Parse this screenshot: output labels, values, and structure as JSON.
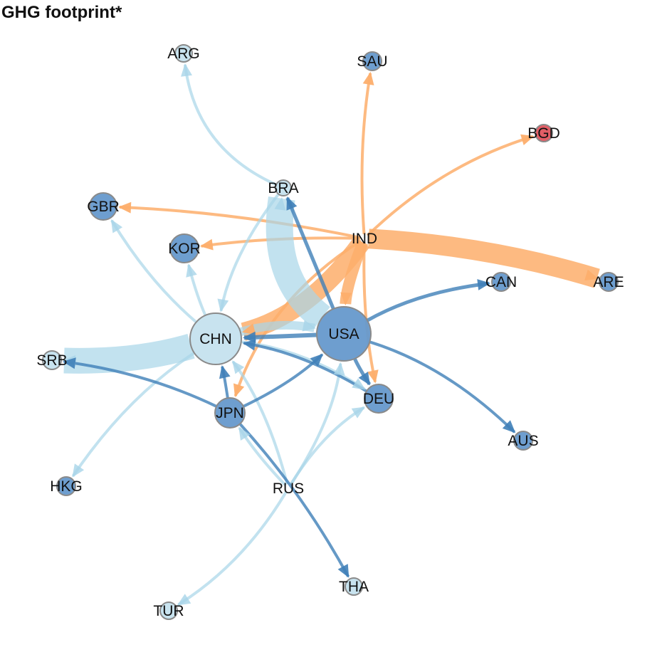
{
  "title": "GHG footprint*",
  "colors": {
    "dark_blue": "#3f7fb8",
    "light_blue": "#a8d5e8",
    "orange": "#fdae6b",
    "red": "#e0555e",
    "node_dark": "#6699cc",
    "node_light": "#c8e3ef",
    "node_border": "#8a8a8a"
  },
  "nodes": [
    {
      "id": "ARG",
      "fill": "node_light"
    },
    {
      "id": "SAU",
      "fill": "node_dark"
    },
    {
      "id": "BGD",
      "fill": "red"
    },
    {
      "id": "BRA",
      "fill": "node_light"
    },
    {
      "id": "GBR",
      "fill": "node_dark"
    },
    {
      "id": "IND",
      "fill": "none"
    },
    {
      "id": "KOR",
      "fill": "node_dark"
    },
    {
      "id": "CAN",
      "fill": "node_dark"
    },
    {
      "id": "ARE",
      "fill": "node_dark"
    },
    {
      "id": "CHN",
      "fill": "node_light"
    },
    {
      "id": "USA",
      "fill": "node_dark"
    },
    {
      "id": "SRB",
      "fill": "node_light"
    },
    {
      "id": "DEU",
      "fill": "node_dark"
    },
    {
      "id": "JPN",
      "fill": "node_dark"
    },
    {
      "id": "AUS",
      "fill": "node_dark"
    },
    {
      "id": "HKG",
      "fill": "node_dark"
    },
    {
      "id": "RUS",
      "fill": "none"
    },
    {
      "id": "THA",
      "fill": "node_light"
    },
    {
      "id": "TUR",
      "fill": "node_light"
    }
  ],
  "edges": [
    {
      "from": "IND",
      "to": "ARE",
      "color": "orange"
    },
    {
      "from": "IND",
      "to": "CHN",
      "color": "orange"
    },
    {
      "from": "IND",
      "to": "USA",
      "color": "orange"
    },
    {
      "from": "IND",
      "to": "SAU",
      "color": "orange"
    },
    {
      "from": "IND",
      "to": "BGD",
      "color": "orange"
    },
    {
      "from": "IND",
      "to": "GBR",
      "color": "orange"
    },
    {
      "from": "IND",
      "to": "KOR",
      "color": "orange"
    },
    {
      "from": "IND",
      "to": "DEU",
      "color": "orange"
    },
    {
      "from": "IND",
      "to": "JPN",
      "color": "orange"
    },
    {
      "from": "CHN",
      "to": "SRB",
      "color": "light_blue"
    },
    {
      "from": "CHN",
      "to": "USA",
      "color": "light_blue"
    },
    {
      "from": "USA",
      "to": "BRA",
      "color": "light_blue"
    },
    {
      "from": "BRA",
      "to": "ARG",
      "color": "light_blue"
    },
    {
      "from": "BRA",
      "to": "CHN",
      "color": "light_blue"
    },
    {
      "from": "CHN",
      "to": "GBR",
      "color": "light_blue"
    },
    {
      "from": "CHN",
      "to": "KOR",
      "color": "light_blue"
    },
    {
      "from": "CHN",
      "to": "HKG",
      "color": "light_blue"
    },
    {
      "from": "CHN",
      "to": "DEU",
      "color": "light_blue"
    },
    {
      "from": "RUS",
      "to": "CHN",
      "color": "light_blue"
    },
    {
      "from": "RUS",
      "to": "TUR",
      "color": "light_blue"
    },
    {
      "from": "RUS",
      "to": "DEU",
      "color": "light_blue"
    },
    {
      "from": "RUS",
      "to": "JPN",
      "color": "light_blue"
    },
    {
      "from": "RUS",
      "to": "USA",
      "color": "light_blue"
    },
    {
      "from": "USA",
      "to": "CHN",
      "color": "dark_blue"
    },
    {
      "from": "USA",
      "to": "CAN",
      "color": "dark_blue"
    },
    {
      "from": "USA",
      "to": "AUS",
      "color": "dark_blue"
    },
    {
      "from": "USA",
      "to": "BRA",
      "color": "dark_blue"
    },
    {
      "from": "USA",
      "to": "DEU",
      "color": "dark_blue"
    },
    {
      "from": "DEU",
      "to": "CHN",
      "color": "dark_blue"
    },
    {
      "from": "JPN",
      "to": "SRB",
      "color": "dark_blue"
    },
    {
      "from": "JPN",
      "to": "CHN",
      "color": "dark_blue"
    },
    {
      "from": "JPN",
      "to": "USA",
      "color": "dark_blue"
    },
    {
      "from": "JPN",
      "to": "THA",
      "color": "dark_blue"
    }
  ]
}
